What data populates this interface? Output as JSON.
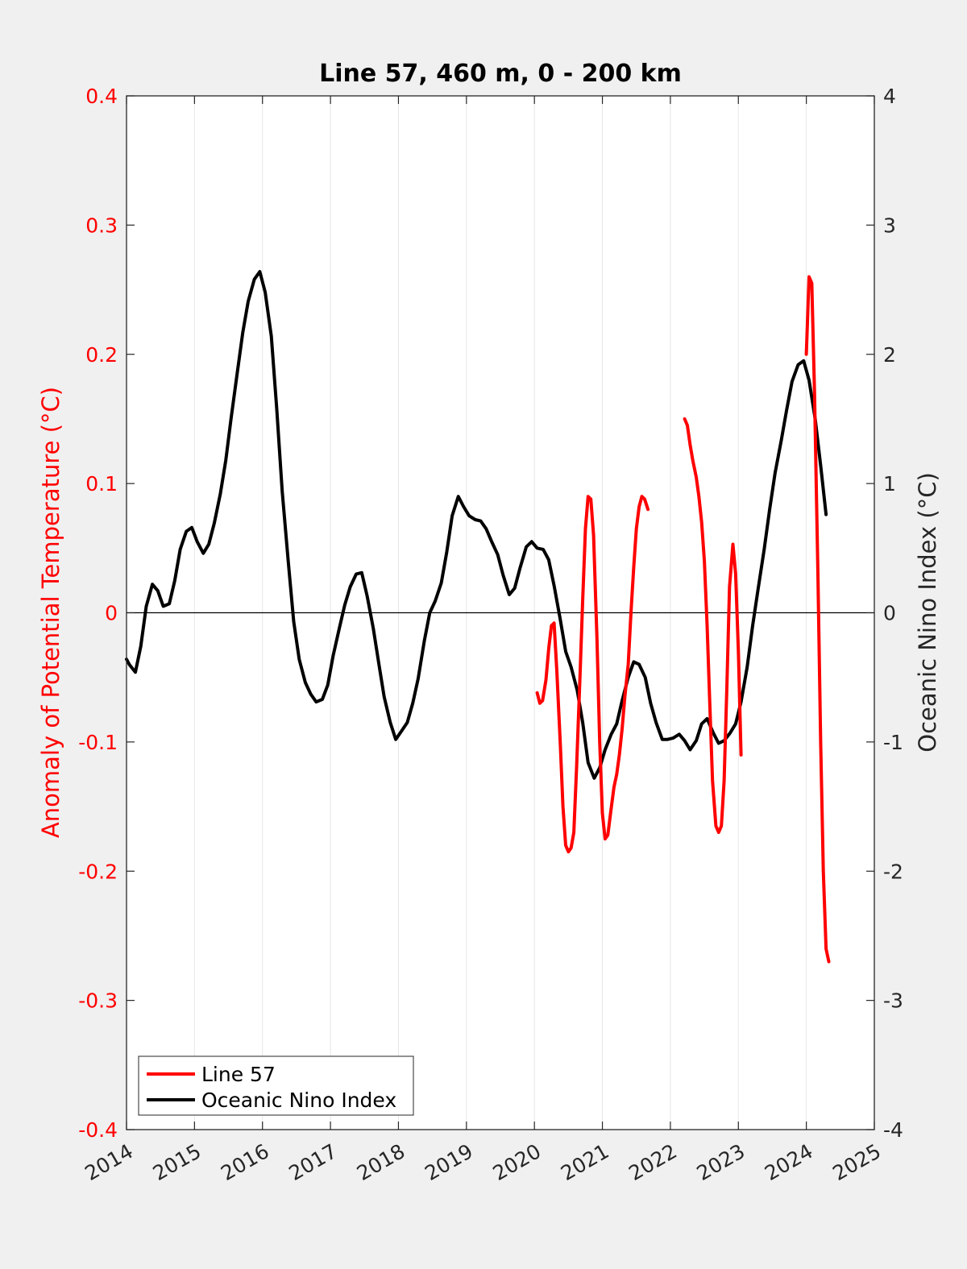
{
  "chart_data": {
    "type": "line",
    "title": "Line 57, 460 m, 0 - 200 km",
    "xlabel": "",
    "ylabel_left": "Anomaly of Potential Temperature (°C)",
    "ylabel_right": "Oceanic Nino Index (°C)",
    "xlim": [
      2014,
      2025
    ],
    "ylim_left": [
      -0.4,
      0.4
    ],
    "ylim_right": [
      -4,
      4
    ],
    "x_ticks": [
      "2014",
      "2015",
      "2016",
      "2017",
      "2018",
      "2019",
      "2020",
      "2021",
      "2022",
      "2023",
      "2024",
      "2025"
    ],
    "y_ticks_left": [
      "-0.4",
      "-0.3",
      "-0.2",
      "-0.1",
      "0",
      "0.1",
      "0.2",
      "0.3",
      "0.4"
    ],
    "y_ticks_right": [
      "-4",
      "-3",
      "-2",
      "-1",
      "0",
      "1",
      "2",
      "3",
      "4"
    ],
    "grid": "vertical",
    "zero_line": true,
    "legend_position": "bottom-left",
    "colors": {
      "line57": "#ff0000",
      "oni": "#000000",
      "left_axis": "#ff0000"
    },
    "series": [
      {
        "name": "Line 57",
        "axis": "left",
        "color": "#ff0000",
        "segments": [
          [
            [
              2020.04,
              -0.062
            ],
            [
              2020.08,
              -0.07
            ],
            [
              2020.12,
              -0.068
            ],
            [
              2020.17,
              -0.052
            ],
            [
              2020.21,
              -0.028
            ],
            [
              2020.25,
              -0.01
            ],
            [
              2020.29,
              -0.008
            ],
            [
              2020.33,
              -0.045
            ],
            [
              2020.38,
              -0.1
            ],
            [
              2020.42,
              -0.15
            ],
            [
              2020.46,
              -0.18
            ],
            [
              2020.5,
              -0.185
            ],
            [
              2020.54,
              -0.182
            ],
            [
              2020.58,
              -0.17
            ],
            [
              2020.62,
              -0.12
            ],
            [
              2020.67,
              -0.05
            ],
            [
              2020.71,
              0.01
            ],
            [
              2020.75,
              0.065
            ],
            [
              2020.79,
              0.09
            ],
            [
              2020.83,
              0.088
            ],
            [
              2020.87,
              0.06
            ],
            [
              2020.92,
              -0.02
            ],
            [
              2020.96,
              -0.1
            ],
            [
              2021.0,
              -0.155
            ],
            [
              2021.04,
              -0.175
            ],
            [
              2021.08,
              -0.172
            ],
            [
              2021.12,
              -0.155
            ],
            [
              2021.17,
              -0.135
            ],
            [
              2021.21,
              -0.125
            ],
            [
              2021.25,
              -0.11
            ],
            [
              2021.29,
              -0.09
            ],
            [
              2021.33,
              -0.065
            ],
            [
              2021.38,
              -0.04
            ],
            [
              2021.42,
              0.0
            ],
            [
              2021.46,
              0.035
            ],
            [
              2021.5,
              0.065
            ],
            [
              2021.54,
              0.082
            ],
            [
              2021.58,
              0.09
            ],
            [
              2021.62,
              0.088
            ],
            [
              2021.67,
              0.08
            ]
          ],
          [
            [
              2022.21,
              0.15
            ],
            [
              2022.25,
              0.145
            ],
            [
              2022.29,
              0.13
            ],
            [
              2022.33,
              0.118
            ],
            [
              2022.38,
              0.105
            ],
            [
              2022.42,
              0.09
            ],
            [
              2022.46,
              0.07
            ],
            [
              2022.5,
              0.04
            ],
            [
              2022.54,
              -0.01
            ],
            [
              2022.58,
              -0.07
            ],
            [
              2022.62,
              -0.13
            ],
            [
              2022.67,
              -0.165
            ],
            [
              2022.71,
              -0.17
            ],
            [
              2022.75,
              -0.165
            ],
            [
              2022.79,
              -0.13
            ],
            [
              2022.83,
              -0.06
            ],
            [
              2022.87,
              0.02
            ],
            [
              2022.92,
              0.053
            ],
            [
              2022.96,
              0.03
            ],
            [
              2023.0,
              -0.03
            ],
            [
              2023.04,
              -0.11
            ]
          ],
          [
            [
              2024.0,
              0.2
            ],
            [
              2024.04,
              0.26
            ],
            [
              2024.08,
              0.255
            ],
            [
              2024.12,
              0.17
            ],
            [
              2024.17,
              0.03
            ],
            [
              2024.21,
              -0.1
            ],
            [
              2024.25,
              -0.2
            ],
            [
              2024.29,
              -0.26
            ],
            [
              2024.33,
              -0.27
            ]
          ]
        ]
      },
      {
        "name": "Oceanic Nino Index",
        "axis": "right",
        "color": "#000000",
        "points": [
          [
            2014.0,
            -0.36
          ],
          [
            2014.04,
            -0.4
          ],
          [
            2014.13,
            -0.46
          ],
          [
            2014.21,
            -0.26
          ],
          [
            2014.29,
            0.05
          ],
          [
            2014.38,
            0.22
          ],
          [
            2014.46,
            0.17
          ],
          [
            2014.54,
            0.05
          ],
          [
            2014.63,
            0.07
          ],
          [
            2014.71,
            0.25
          ],
          [
            2014.79,
            0.49
          ],
          [
            2014.88,
            0.63
          ],
          [
            2014.96,
            0.66
          ],
          [
            2015.04,
            0.55
          ],
          [
            2015.13,
            0.46
          ],
          [
            2015.21,
            0.53
          ],
          [
            2015.29,
            0.69
          ],
          [
            2015.38,
            0.92
          ],
          [
            2015.46,
            1.18
          ],
          [
            2015.54,
            1.51
          ],
          [
            2015.63,
            1.86
          ],
          [
            2015.71,
            2.17
          ],
          [
            2015.79,
            2.41
          ],
          [
            2015.88,
            2.58
          ],
          [
            2015.96,
            2.64
          ],
          [
            2016.04,
            2.48
          ],
          [
            2016.13,
            2.14
          ],
          [
            2016.21,
            1.58
          ],
          [
            2016.29,
            0.94
          ],
          [
            2016.38,
            0.39
          ],
          [
            2016.46,
            -0.07
          ],
          [
            2016.54,
            -0.36
          ],
          [
            2016.63,
            -0.54
          ],
          [
            2016.71,
            -0.63
          ],
          [
            2016.79,
            -0.69
          ],
          [
            2016.88,
            -0.67
          ],
          [
            2016.96,
            -0.56
          ],
          [
            2017.04,
            -0.33
          ],
          [
            2017.13,
            -0.12
          ],
          [
            2017.21,
            0.06
          ],
          [
            2017.29,
            0.2
          ],
          [
            2017.38,
            0.3
          ],
          [
            2017.46,
            0.31
          ],
          [
            2017.54,
            0.13
          ],
          [
            2017.63,
            -0.12
          ],
          [
            2017.71,
            -0.39
          ],
          [
            2017.79,
            -0.65
          ],
          [
            2017.88,
            -0.85
          ],
          [
            2017.96,
            -0.98
          ],
          [
            2018.04,
            -0.92
          ],
          [
            2018.13,
            -0.85
          ],
          [
            2018.21,
            -0.7
          ],
          [
            2018.29,
            -0.51
          ],
          [
            2018.38,
            -0.22
          ],
          [
            2018.46,
            0.0
          ],
          [
            2018.54,
            0.09
          ],
          [
            2018.63,
            0.23
          ],
          [
            2018.71,
            0.47
          ],
          [
            2018.79,
            0.75
          ],
          [
            2018.88,
            0.9
          ],
          [
            2018.96,
            0.82
          ],
          [
            2019.04,
            0.75
          ],
          [
            2019.13,
            0.72
          ],
          [
            2019.21,
            0.71
          ],
          [
            2019.29,
            0.65
          ],
          [
            2019.38,
            0.54
          ],
          [
            2019.46,
            0.45
          ],
          [
            2019.54,
            0.29
          ],
          [
            2019.63,
            0.14
          ],
          [
            2019.71,
            0.19
          ],
          [
            2019.79,
            0.35
          ],
          [
            2019.88,
            0.51
          ],
          [
            2019.96,
            0.55
          ],
          [
            2020.04,
            0.5
          ],
          [
            2020.13,
            0.49
          ],
          [
            2020.21,
            0.41
          ],
          [
            2020.29,
            0.21
          ],
          [
            2020.38,
            -0.05
          ],
          [
            2020.46,
            -0.3
          ],
          [
            2020.54,
            -0.42
          ],
          [
            2020.63,
            -0.6
          ],
          [
            2020.71,
            -0.85
          ],
          [
            2020.79,
            -1.16
          ],
          [
            2020.88,
            -1.28
          ],
          [
            2020.96,
            -1.2
          ],
          [
            2021.04,
            -1.06
          ],
          [
            2021.13,
            -0.94
          ],
          [
            2021.21,
            -0.86
          ],
          [
            2021.29,
            -0.68
          ],
          [
            2021.38,
            -0.5
          ],
          [
            2021.46,
            -0.38
          ],
          [
            2021.54,
            -0.4
          ],
          [
            2021.63,
            -0.5
          ],
          [
            2021.71,
            -0.7
          ],
          [
            2021.79,
            -0.85
          ],
          [
            2021.88,
            -0.98
          ],
          [
            2021.96,
            -0.98
          ],
          [
            2022.04,
            -0.97
          ],
          [
            2022.13,
            -0.94
          ],
          [
            2022.21,
            -0.99
          ],
          [
            2022.29,
            -1.06
          ],
          [
            2022.38,
            -0.99
          ],
          [
            2022.46,
            -0.86
          ],
          [
            2022.54,
            -0.82
          ],
          [
            2022.63,
            -0.93
          ],
          [
            2022.71,
            -1.01
          ],
          [
            2022.79,
            -0.99
          ],
          [
            2022.88,
            -0.93
          ],
          [
            2022.96,
            -0.86
          ],
          [
            2023.04,
            -0.69
          ],
          [
            2023.13,
            -0.42
          ],
          [
            2023.21,
            -0.1
          ],
          [
            2023.29,
            0.18
          ],
          [
            2023.38,
            0.49
          ],
          [
            2023.46,
            0.8
          ],
          [
            2023.54,
            1.08
          ],
          [
            2023.63,
            1.33
          ],
          [
            2023.71,
            1.57
          ],
          [
            2023.79,
            1.79
          ],
          [
            2023.88,
            1.92
          ],
          [
            2023.96,
            1.95
          ],
          [
            2024.04,
            1.8
          ],
          [
            2024.13,
            1.5
          ],
          [
            2024.21,
            1.14
          ],
          [
            2024.29,
            0.76
          ]
        ]
      }
    ]
  }
}
